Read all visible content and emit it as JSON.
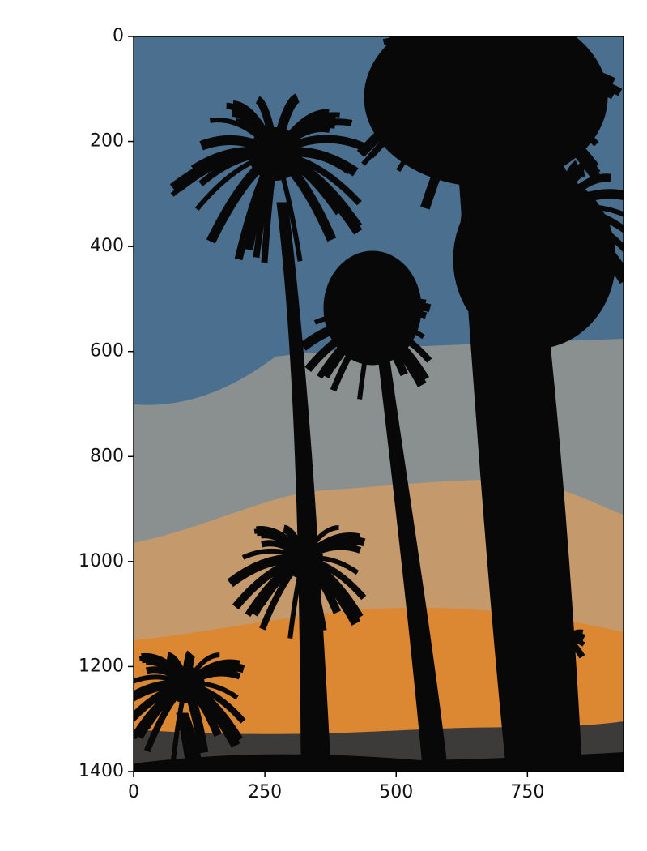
{
  "chart_data": {
    "type": "image",
    "xlim": [
      0,
      933
    ],
    "ylim": [
      1400,
      0
    ],
    "xticks": [
      0,
      250,
      500,
      750
    ],
    "yticks": [
      0,
      200,
      400,
      600,
      800,
      1000,
      1200,
      1400
    ]
  }
}
